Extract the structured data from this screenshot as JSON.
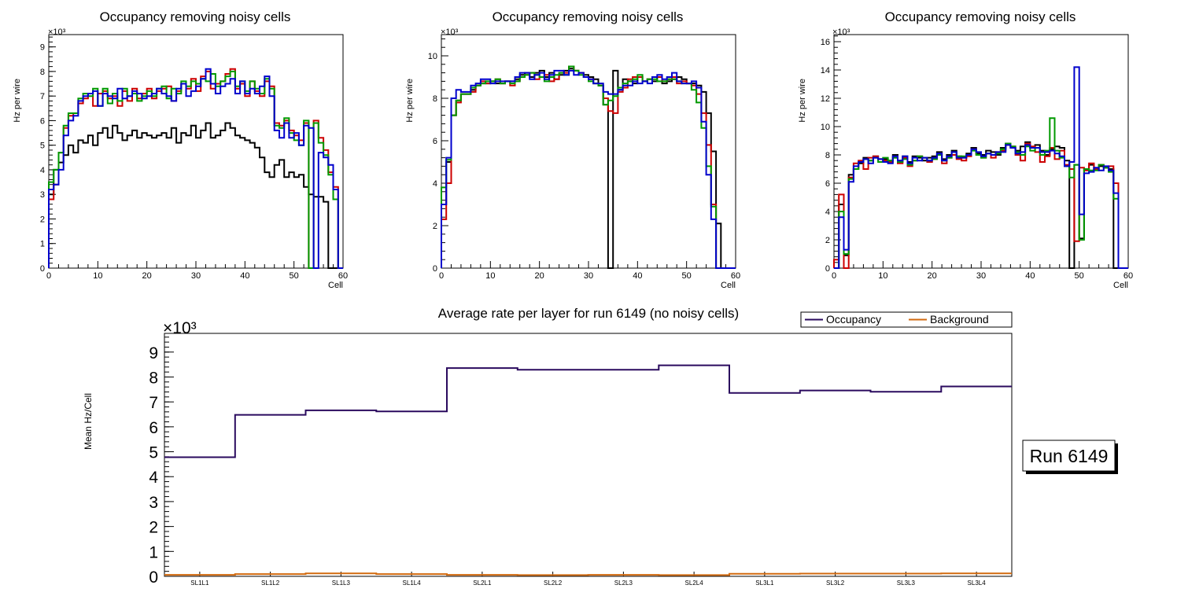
{
  "chart_data": [
    {
      "type": "line",
      "step": true,
      "title": "Occupancy removing noisy cells",
      "xlabel": "Cell",
      "ylabel": "Hz per wire",
      "exponent": "×10³",
      "xlim": [
        0,
        60
      ],
      "ylim": [
        0,
        9.5
      ],
      "xticks": [
        0,
        10,
        20,
        30,
        40,
        50,
        60
      ],
      "yticks": [
        0,
        1,
        2,
        3,
        4,
        5,
        6,
        7,
        8,
        9
      ],
      "bins": 60,
      "series": [
        {
          "name": "black",
          "color": "#000000",
          "values": [
            3.0,
            4.0,
            4.3,
            4.6,
            5.0,
            4.7,
            5.2,
            5.1,
            5.4,
            5.0,
            5.5,
            5.7,
            5.3,
            5.8,
            5.5,
            5.2,
            5.4,
            5.6,
            5.3,
            5.5,
            5.4,
            5.3,
            5.4,
            5.5,
            5.3,
            5.7,
            5.1,
            5.5,
            5.4,
            5.8,
            5.3,
            5.6,
            5.9,
            5.3,
            5.4,
            5.6,
            5.9,
            5.7,
            5.4,
            5.3,
            5.2,
            5.1,
            4.9,
            4.5,
            3.9,
            3.7,
            4.2,
            4.4,
            3.7,
            3.9,
            3.7,
            3.8,
            3.3,
            3.0,
            2.9,
            2.9,
            2.7,
            0,
            0,
            0
          ]
        },
        {
          "name": "red",
          "color": "#cc0000",
          "values": [
            2.8,
            3.4,
            4.7,
            5.7,
            6.2,
            6.3,
            6.7,
            6.9,
            7.1,
            6.6,
            7.1,
            7.2,
            6.9,
            7.0,
            6.6,
            7.2,
            6.8,
            7.3,
            6.9,
            7.1,
            7.3,
            6.9,
            7.2,
            7.3,
            7.4,
            6.8,
            7.2,
            7.5,
            7.3,
            7.7,
            7.2,
            7.8,
            8.0,
            7.3,
            7.5,
            7.6,
            7.9,
            8.1,
            7.3,
            7.5,
            7.0,
            7.6,
            7.2,
            7.0,
            7.6,
            7.4,
            5.9,
            5.8,
            6.0,
            5.6,
            5.4,
            5.2,
            5.9,
            0,
            6.0,
            5.3,
            4.8,
            3.9,
            3.3,
            0
          ]
        },
        {
          "name": "green",
          "color": "#009900",
          "values": [
            3.5,
            4.0,
            4.7,
            5.8,
            6.3,
            6.3,
            6.9,
            7.1,
            7.0,
            7.3,
            6.6,
            7.3,
            6.7,
            7.1,
            6.8,
            7.3,
            7.0,
            7.1,
            6.8,
            7.0,
            7.2,
            7.0,
            7.3,
            7.4,
            6.9,
            7.3,
            7.1,
            7.6,
            7.4,
            7.6,
            7.5,
            7.7,
            7.6,
            7.9,
            7.4,
            7.6,
            7.8,
            8.0,
            7.4,
            7.6,
            7.2,
            7.6,
            7.3,
            7.1,
            7.7,
            7.3,
            5.8,
            5.7,
            6.1,
            5.5,
            5.2,
            5.0,
            6.0,
            0,
            5.9,
            5.1,
            4.6,
            3.8,
            2.8,
            0
          ]
        },
        {
          "name": "blue",
          "color": "#0000cc",
          "values": [
            3.2,
            3.4,
            4.0,
            5.4,
            6.0,
            6.2,
            6.8,
            7.0,
            7.1,
            7.2,
            6.6,
            7.1,
            7.0,
            6.9,
            7.3,
            6.9,
            7.0,
            7.2,
            7.1,
            6.9,
            7.0,
            7.1,
            7.3,
            7.1,
            7.0,
            6.8,
            7.3,
            7.5,
            7.0,
            7.2,
            7.4,
            7.7,
            8.1,
            7.5,
            7.1,
            7.4,
            7.5,
            7.7,
            7.1,
            7.6,
            7.1,
            7.3,
            7.1,
            7.4,
            7.8,
            7.0,
            5.6,
            5.3,
            5.9,
            5.3,
            5.5,
            5.0,
            5.8,
            5.7,
            0,
            4.7,
            4.5,
            4.2,
            3.2,
            0
          ]
        }
      ]
    },
    {
      "type": "line",
      "step": true,
      "title": "Occupancy removing noisy cells",
      "xlabel": "Cell",
      "ylabel": "Hz per wire",
      "exponent": "×10³",
      "xlim": [
        0,
        60
      ],
      "ylim": [
        0,
        11
      ],
      "xticks": [
        0,
        10,
        20,
        30,
        40,
        50,
        60
      ],
      "yticks": [
        0,
        2,
        4,
        6,
        8,
        10
      ],
      "bins": 60,
      "series": [
        {
          "name": "black",
          "color": "#000000",
          "values": [
            3.0,
            5.0,
            7.2,
            7.9,
            8.2,
            8.2,
            8.4,
            8.6,
            8.7,
            8.7,
            8.8,
            8.7,
            8.7,
            8.8,
            8.8,
            8.9,
            9.1,
            9.2,
            9.0,
            9.2,
            9.3,
            9.0,
            9.2,
            8.9,
            9.1,
            9.3,
            9.4,
            9.3,
            9.2,
            9.1,
            9.0,
            8.9,
            8.6,
            7.7,
            0,
            9.3,
            8.4,
            8.9,
            8.8,
            8.7,
            9.0,
            8.8,
            8.9,
            8.8,
            9.0,
            8.7,
            8.8,
            8.9,
            9.0,
            8.9,
            8.7,
            8.7,
            8.6,
            8.3,
            7.3,
            5.5,
            2.1,
            0,
            0,
            0
          ]
        },
        {
          "name": "red",
          "color": "#cc0000",
          "values": [
            2.3,
            4.0,
            7.2,
            7.8,
            8.2,
            8.2,
            8.3,
            8.6,
            8.8,
            8.7,
            8.8,
            8.9,
            8.7,
            8.8,
            8.6,
            8.8,
            9.0,
            9.1,
            9.2,
            8.9,
            9.0,
            9.1,
            8.8,
            8.9,
            9.2,
            9.2,
            9.5,
            9.3,
            9.2,
            9.0,
            8.9,
            8.7,
            8.6,
            8.0,
            7.4,
            7.3,
            8.3,
            8.5,
            8.9,
            9.0,
            9.0,
            8.8,
            8.9,
            9.0,
            9.0,
            8.8,
            8.9,
            9.0,
            8.7,
            8.8,
            8.7,
            8.6,
            8.2,
            7.3,
            5.8,
            3.0,
            0,
            0,
            0,
            0
          ]
        },
        {
          "name": "green",
          "color": "#009900",
          "values": [
            3.8,
            5.1,
            7.2,
            7.9,
            8.2,
            8.2,
            8.5,
            8.6,
            8.7,
            8.8,
            8.8,
            8.9,
            8.7,
            8.8,
            8.7,
            8.8,
            9.0,
            9.1,
            9.2,
            9.1,
            9.0,
            8.8,
            9.0,
            9.1,
            9.2,
            9.1,
            9.5,
            9.3,
            9.1,
            9.0,
            8.8,
            8.7,
            8.6,
            7.7,
            7.9,
            8.1,
            8.5,
            8.7,
            8.8,
            8.9,
            9.1,
            8.8,
            8.9,
            8.9,
            8.8,
            8.8,
            8.9,
            8.9,
            8.8,
            8.7,
            8.7,
            8.4,
            7.8,
            6.6,
            4.8,
            2.9,
            0,
            0,
            0,
            0
          ]
        },
        {
          "name": "blue",
          "color": "#0000cc",
          "values": [
            3.0,
            5.2,
            8.0,
            8.4,
            8.3,
            8.3,
            8.6,
            8.7,
            8.9,
            8.9,
            8.7,
            8.8,
            8.8,
            8.8,
            8.8,
            9.0,
            9.2,
            9.2,
            8.9,
            9.1,
            9.2,
            8.9,
            9.1,
            9.3,
            9.3,
            9.1,
            9.3,
            9.1,
            9.2,
            9.0,
            8.9,
            8.7,
            8.7,
            8.3,
            8.2,
            8.2,
            8.4,
            8.6,
            8.6,
            8.8,
            8.7,
            8.8,
            8.7,
            9.0,
            9.1,
            8.9,
            9.0,
            9.2,
            8.8,
            8.7,
            8.7,
            8.8,
            8.5,
            6.9,
            4.4,
            2.3,
            0,
            0,
            0,
            0
          ]
        }
      ]
    },
    {
      "type": "line",
      "step": true,
      "title": "Occupancy removing noisy cells",
      "xlabel": "Cell",
      "ylabel": "Hz per wire",
      "exponent": "×10³",
      "xlim": [
        0,
        60
      ],
      "ylim": [
        0,
        16.5
      ],
      "xticks": [
        0,
        10,
        20,
        30,
        40,
        50,
        60
      ],
      "yticks": [
        0,
        2,
        4,
        6,
        8,
        10,
        12,
        14,
        16
      ],
      "bins": 60,
      "series": [
        {
          "name": "black",
          "color": "#000000",
          "values": [
            0,
            4.5,
            0.9,
            6.6,
            7.0,
            7.4,
            7.8,
            7.6,
            7.9,
            7.7,
            7.7,
            7.6,
            8.0,
            7.6,
            7.9,
            7.5,
            7.9,
            7.8,
            7.6,
            7.8,
            7.9,
            8.2,
            7.7,
            8.0,
            8.3,
            7.9,
            7.8,
            8.1,
            8.5,
            8.1,
            8.0,
            8.3,
            8.2,
            8.0,
            8.5,
            8.8,
            8.5,
            8.3,
            8.6,
            8.9,
            8.5,
            8.7,
            8.3,
            8.0,
            8.4,
            8.6,
            8.5,
            7.6,
            0,
            7.3,
            2.1,
            7.0,
            7.3,
            7.0,
            7.2,
            7.1,
            7.0,
            0,
            0,
            0
          ]
        },
        {
          "name": "red",
          "color": "#cc0000",
          "values": [
            0.6,
            5.2,
            0,
            6.4,
            7.4,
            7.6,
            7.0,
            7.8,
            7.9,
            7.7,
            7.6,
            7.5,
            7.8,
            7.4,
            7.8,
            7.2,
            7.6,
            7.9,
            7.8,
            7.5,
            7.7,
            8.0,
            7.4,
            7.8,
            8.0,
            7.7,
            7.6,
            7.9,
            8.4,
            8.0,
            7.8,
            8.1,
            7.8,
            8.2,
            8.3,
            8.7,
            8.6,
            8.0,
            7.6,
            8.8,
            8.6,
            8.2,
            7.5,
            7.9,
            8.5,
            7.7,
            8.3,
            7.3,
            7.0,
            1.9,
            7.1,
            6.9,
            7.4,
            7.0,
            7.3,
            7.1,
            7.2,
            6.0,
            0,
            0
          ]
        },
        {
          "name": "green",
          "color": "#009900",
          "values": [
            0,
            4.0,
            1.0,
            6.3,
            7.0,
            7.5,
            7.7,
            7.6,
            7.8,
            7.5,
            7.8,
            7.6,
            7.8,
            7.5,
            7.7,
            7.3,
            7.6,
            7.9,
            7.8,
            7.6,
            7.7,
            8.0,
            7.6,
            7.8,
            8.2,
            7.9,
            7.9,
            8.0,
            8.3,
            8.0,
            7.8,
            8.1,
            8.0,
            8.1,
            8.4,
            8.8,
            8.6,
            8.2,
            8.0,
            8.6,
            8.3,
            8.5,
            8.0,
            8.3,
            10.6,
            8.3,
            7.8,
            7.2,
            6.4,
            7.3,
            2.0,
            7.0,
            6.9,
            6.9,
            7.3,
            7.1,
            6.8,
            4.9,
            0,
            0
          ]
        },
        {
          "name": "blue",
          "color": "#0000cc",
          "values": [
            0,
            3.6,
            1.3,
            6.1,
            7.2,
            7.5,
            7.7,
            7.4,
            7.8,
            7.7,
            7.5,
            7.4,
            7.9,
            7.6,
            7.9,
            7.4,
            7.8,
            7.6,
            7.8,
            7.6,
            7.8,
            8.1,
            7.6,
            7.9,
            8.2,
            7.8,
            7.8,
            8.0,
            8.4,
            8.2,
            7.9,
            8.1,
            8.0,
            8.2,
            8.2,
            8.7,
            8.5,
            8.1,
            8.2,
            8.7,
            8.5,
            8.5,
            8.2,
            8.2,
            8.3,
            8.1,
            7.9,
            7.2,
            7.5,
            14.2,
            3.8,
            6.7,
            6.8,
            7.1,
            6.9,
            7.2,
            6.9,
            5.3,
            0,
            0
          ]
        }
      ]
    },
    {
      "type": "line",
      "step": true,
      "title": "Average rate per layer for run 6149 (no noisy cells)",
      "xlabel": "",
      "ylabel": "Mean Hz/Cell",
      "exponent": "×10³",
      "ylim": [
        0,
        9.75
      ],
      "yticks": [
        0,
        1,
        2,
        3,
        4,
        5,
        6,
        7,
        8,
        9
      ],
      "categories": [
        "SL1L1",
        "SL1L2",
        "SL1L3",
        "SL1L4",
        "SL2L1",
        "SL2L2",
        "SL2L3",
        "SL2L4",
        "SL3L1",
        "SL3L2",
        "SL3L3",
        "SL3L4"
      ],
      "series": [
        {
          "name": "Occupancy",
          "color": "#2a0a5e",
          "values": [
            4.78,
            6.48,
            6.66,
            6.62,
            8.36,
            8.29,
            8.29,
            8.47,
            7.36,
            7.46,
            7.41,
            7.62
          ]
        },
        {
          "name": "Background",
          "color": "#d26a0f",
          "values": [
            0.06,
            0.09,
            0.12,
            0.09,
            0.06,
            0.05,
            0.06,
            0.05,
            0.1,
            0.11,
            0.11,
            0.12
          ]
        }
      ],
      "legend": "top-right",
      "annotation": "Run 6149"
    }
  ]
}
